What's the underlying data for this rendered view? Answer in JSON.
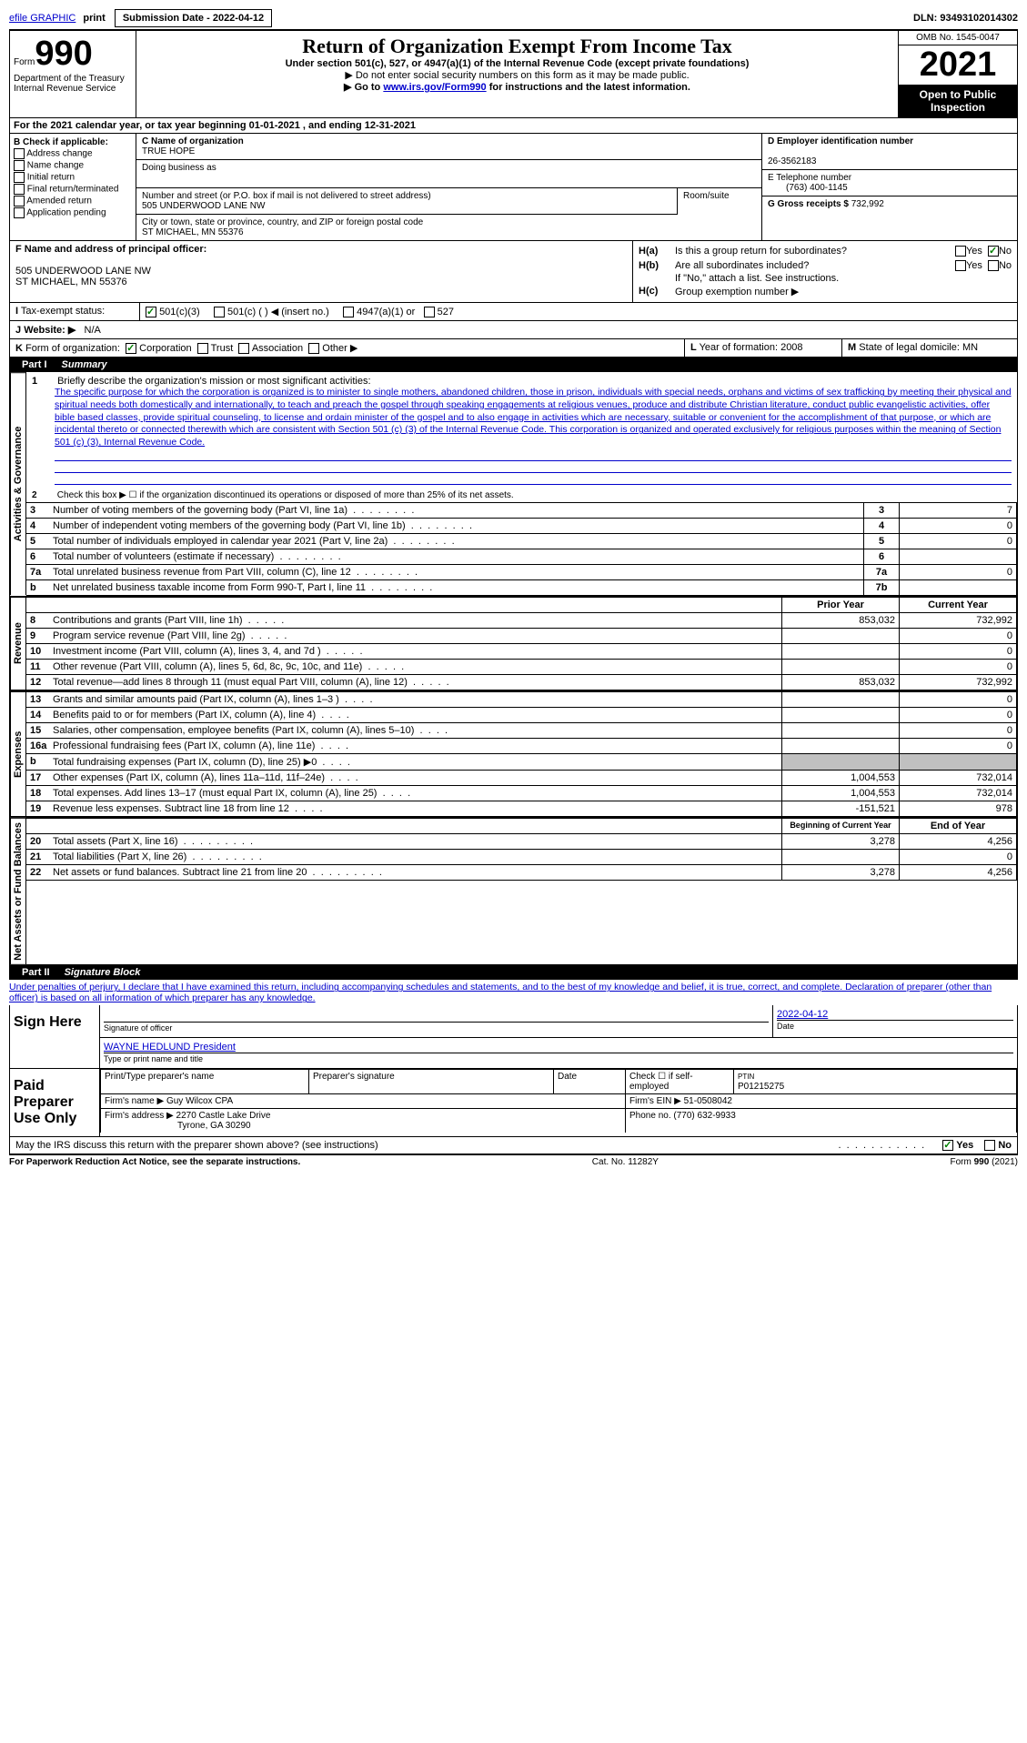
{
  "top": {
    "efile": "efile GRAPHIC",
    "print": "print",
    "submission": "Submission Date - 2022-04-12",
    "dln": "DLN: 93493102014302"
  },
  "header": {
    "form_prefix": "Form",
    "form_num": "990",
    "title": "Return of Organization Exempt From Income Tax",
    "subtitle": "Under section 501(c), 527, or 4947(a)(1) of the Internal Revenue Code (except private foundations)",
    "note1": "▶ Do not enter social security numbers on this form as it may be made public.",
    "note2_prefix": "▶ Go to ",
    "note2_link": "www.irs.gov/Form990",
    "note2_suffix": " for instructions and the latest information.",
    "dept": "Department of the Treasury",
    "irs": "Internal Revenue Service",
    "omb": "OMB No. 1545-0047",
    "year": "2021",
    "inspection": "Open to Public Inspection"
  },
  "section_a": {
    "label": "A",
    "text": "For the 2021 calendar year, or tax year beginning 01-01-2021   , and ending 12-31-2021"
  },
  "section_b": {
    "label": "B Check if applicable:",
    "items": [
      "Address change",
      "Name change",
      "Initial return",
      "Final return/terminated",
      "Amended return",
      "Application pending"
    ]
  },
  "section_c": {
    "name_label": "C Name of organization",
    "name": "TRUE HOPE",
    "dba_label": "Doing business as",
    "street_label": "Number and street (or P.O. box if mail is not delivered to street address)",
    "street": "505 UNDERWOOD LANE NW",
    "room_label": "Room/suite",
    "city_label": "City or town, state or province, country, and ZIP or foreign postal code",
    "city": "ST MICHAEL, MN  55376"
  },
  "section_d": {
    "label": "D Employer identification number",
    "value": "26-3562183"
  },
  "section_e": {
    "label": "E Telephone number",
    "value": "(763) 400-1145"
  },
  "section_f": {
    "label": "F  Name and address of principal officer:",
    "addr1": "505 UNDERWOOD LANE NW",
    "addr2": "ST MICHAEL, MN  55376"
  },
  "section_g": {
    "label": "G Gross receipts $",
    "value": "732,992"
  },
  "section_h": {
    "a_label": "H(a)",
    "a_text": "Is this a group return for subordinates?",
    "b_label": "H(b)",
    "b_text": "Are all subordinates included?",
    "note": "If \"No,\" attach a list. See instructions.",
    "c_label": "H(c)",
    "c_text": "Group exemption number ▶"
  },
  "section_i": {
    "label": "I",
    "text": "Tax-exempt status:",
    "opts": [
      "501(c)(3)",
      "501(c) (  ) ◀ (insert no.)",
      "4947(a)(1) or",
      "527"
    ]
  },
  "section_j": {
    "label": "J",
    "text": "Website: ▶",
    "value": "N/A"
  },
  "section_k": {
    "label": "K",
    "text": "Form of organization:",
    "opts": [
      "Corporation",
      "Trust",
      "Association",
      "Other ▶"
    ]
  },
  "section_l": {
    "label": "L",
    "text": "Year of formation: 2008"
  },
  "section_m": {
    "label": "M",
    "text": "State of legal domicile: MN"
  },
  "part1": {
    "label": "Part I",
    "title": "Summary",
    "line1_label": "1",
    "line1_text": "Briefly describe the organization's mission or most significant activities:",
    "mission": "The specific purpose for which the corporation is organized is to minister to single mothers, abandoned children, those in prison, individuals with special needs, orphans and victims of sex trafficking by meeting their physical and spiritual needs both domestically and internationally, to teach and preach the gospel through speaking engagements at religious venues, produce and distribute Christian literature, conduct public evangelistic activities, offer bible based classes, provide spiritual counseling, to license and ordain minister of the gospel and to also engage in activities which are necessary, suitable or convenient for the accomplishment of that purpose, or which are incidental thereto or connected therewith which are consistent with Section 501 (c) (3) of the Internal Revenue Code. This corporation is organized and operated exclusively for religious purposes within the meaning of Section 501 (c) (3), Internal Revenue Code.",
    "line2": "Check this box ▶ ☐ if the organization discontinued its operations or disposed of more than 25% of its net assets.",
    "sections": {
      "activities": "Activities & Governance",
      "revenue": "Revenue",
      "expenses": "Expenses",
      "netassets": "Net Assets or Fund Balances"
    },
    "rows_gov": [
      {
        "n": "3",
        "t": "Number of voting members of the governing body (Part VI, line 1a)",
        "box": "3",
        "v": "7"
      },
      {
        "n": "4",
        "t": "Number of independent voting members of the governing body (Part VI, line 1b)",
        "box": "4",
        "v": "0"
      },
      {
        "n": "5",
        "t": "Total number of individuals employed in calendar year 2021 (Part V, line 2a)",
        "box": "5",
        "v": "0"
      },
      {
        "n": "6",
        "t": "Total number of volunteers (estimate if necessary)",
        "box": "6",
        "v": ""
      },
      {
        "n": "7a",
        "t": "Total unrelated business revenue from Part VIII, column (C), line 12",
        "box": "7a",
        "v": "0"
      },
      {
        "n": "b",
        "t": "Net unrelated business taxable income from Form 990-T, Part I, line 11",
        "box": "7b",
        "v": ""
      }
    ],
    "col_headers": {
      "prior": "Prior Year",
      "current": "Current Year"
    },
    "rows_rev": [
      {
        "n": "8",
        "t": "Contributions and grants (Part VIII, line 1h)",
        "p": "853,032",
        "c": "732,992"
      },
      {
        "n": "9",
        "t": "Program service revenue (Part VIII, line 2g)",
        "p": "",
        "c": "0"
      },
      {
        "n": "10",
        "t": "Investment income (Part VIII, column (A), lines 3, 4, and 7d )",
        "p": "",
        "c": "0"
      },
      {
        "n": "11",
        "t": "Other revenue (Part VIII, column (A), lines 5, 6d, 8c, 9c, 10c, and 11e)",
        "p": "",
        "c": "0"
      },
      {
        "n": "12",
        "t": "Total revenue—add lines 8 through 11 (must equal Part VIII, column (A), line 12)",
        "p": "853,032",
        "c": "732,992"
      }
    ],
    "rows_exp": [
      {
        "n": "13",
        "t": "Grants and similar amounts paid (Part IX, column (A), lines 1–3 )",
        "p": "",
        "c": "0"
      },
      {
        "n": "14",
        "t": "Benefits paid to or for members (Part IX, column (A), line 4)",
        "p": "",
        "c": "0"
      },
      {
        "n": "15",
        "t": "Salaries, other compensation, employee benefits (Part IX, column (A), lines 5–10)",
        "p": "",
        "c": "0"
      },
      {
        "n": "16a",
        "t": "Professional fundraising fees (Part IX, column (A), line 11e)",
        "p": "",
        "c": "0"
      },
      {
        "n": "b",
        "t": "Total fundraising expenses (Part IX, column (D), line 25) ▶0",
        "p": "GRAY",
        "c": "GRAY"
      },
      {
        "n": "17",
        "t": "Other expenses (Part IX, column (A), lines 11a–11d, 11f–24e)",
        "p": "1,004,553",
        "c": "732,014"
      },
      {
        "n": "18",
        "t": "Total expenses. Add lines 13–17 (must equal Part IX, column (A), line 25)",
        "p": "1,004,553",
        "c": "732,014"
      },
      {
        "n": "19",
        "t": "Revenue less expenses. Subtract line 18 from line 12",
        "p": "-151,521",
        "c": "978"
      }
    ],
    "col_headers2": {
      "begin": "Beginning of Current Year",
      "end": "End of Year"
    },
    "rows_net": [
      {
        "n": "20",
        "t": "Total assets (Part X, line 16)",
        "p": "3,278",
        "c": "4,256"
      },
      {
        "n": "21",
        "t": "Total liabilities (Part X, line 26)",
        "p": "",
        "c": "0"
      },
      {
        "n": "22",
        "t": "Net assets or fund balances. Subtract line 21 from line 20",
        "p": "3,278",
        "c": "4,256"
      }
    ]
  },
  "part2": {
    "label": "Part II",
    "title": "Signature Block",
    "declaration": "Under penalties of perjury, I declare that I have examined this return, including accompanying schedules and statements, and to the best of my knowledge and belief, it is true, correct, and complete. Declaration of preparer (other than officer) is based on all information of which preparer has any knowledge.",
    "sign_here": "Sign Here",
    "sig_officer": "Signature of officer",
    "sig_date": "2022-04-12",
    "date_label": "Date",
    "officer_name": "WAYNE HEDLUND  President",
    "type_label": "Type or print name and title",
    "paid_prep": "Paid Preparer Use Only",
    "prep_name_label": "Print/Type preparer's name",
    "prep_sig_label": "Preparer's signature",
    "prep_date_label": "Date",
    "check_self": "Check ☐ if self-employed",
    "ptin_label": "PTIN",
    "ptin": "P01215275",
    "firm_name_label": "Firm's name    ▶",
    "firm_name": "Guy Wilcox CPA",
    "firm_ein_label": "Firm's EIN ▶",
    "firm_ein": "51-0508042",
    "firm_addr_label": "Firm's address ▶",
    "firm_addr1": "2270 Castle Lake Drive",
    "firm_addr2": "Tyrone, GA  30290",
    "phone_label": "Phone no.",
    "phone": "(770) 632-9933",
    "discuss": "May the IRS discuss this return with the preparer shown above? (see instructions)",
    "yes": "Yes",
    "no": "No"
  },
  "footer": {
    "left": "For Paperwork Reduction Act Notice, see the separate instructions.",
    "center": "Cat. No. 11282Y",
    "right": "Form 990 (2021)"
  }
}
